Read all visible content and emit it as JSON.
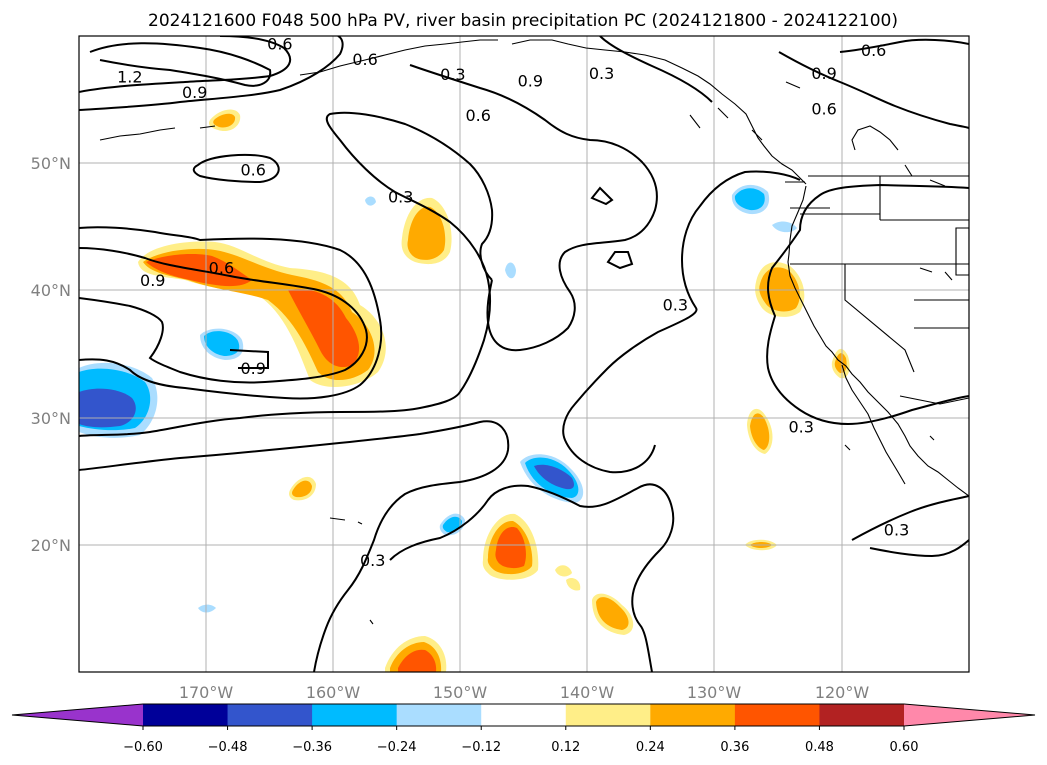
{
  "title": "2024121600 F048 500 hPa PV, river basin precipitation PC (2024121800 - 2024122100)",
  "map": {
    "lon_range": [
      -180,
      -110
    ],
    "lat_range": [
      10,
      60
    ],
    "lon_ticks": [
      {
        "value": -170,
        "label": "170°W"
      },
      {
        "value": -160,
        "label": "160°W"
      },
      {
        "value": -150,
        "label": "150°W"
      },
      {
        "value": -140,
        "label": "140°W"
      },
      {
        "value": -130,
        "label": "130°W"
      },
      {
        "value": -120,
        "label": "120°W"
      }
    ],
    "lat_ticks": [
      {
        "value": 20,
        "label": "20°N"
      },
      {
        "value": 30,
        "label": "30°N"
      },
      {
        "value": 40,
        "label": "40°N"
      },
      {
        "value": 50,
        "label": "50°N"
      }
    ],
    "grid": true
  },
  "contour_labels": [
    {
      "text": "1.2",
      "lon": -176,
      "lat": 56.8
    },
    {
      "text": "0.9",
      "lon": -170.9,
      "lat": 55.6
    },
    {
      "text": "0.6",
      "lon": -164.2,
      "lat": 59.4
    },
    {
      "text": "0.6",
      "lon": -157.5,
      "lat": 58.2
    },
    {
      "text": "0.3",
      "lon": -150.6,
      "lat": 57.0
    },
    {
      "text": "0.9",
      "lon": -144.5,
      "lat": 56.5
    },
    {
      "text": "0.6",
      "lon": -148.6,
      "lat": 53.8
    },
    {
      "text": "0.3",
      "lon": -138.9,
      "lat": 57.1
    },
    {
      "text": "0.9",
      "lon": -121.4,
      "lat": 57.1
    },
    {
      "text": "0.6",
      "lon": -117.5,
      "lat": 58.9
    },
    {
      "text": "0.6",
      "lon": -121.4,
      "lat": 54.3
    },
    {
      "text": "0.6",
      "lon": -166.3,
      "lat": 49.5
    },
    {
      "text": "0.3",
      "lon": -154.7,
      "lat": 47.4
    },
    {
      "text": "0.6",
      "lon": -168.8,
      "lat": 41.8
    },
    {
      "text": "0.9",
      "lon": -174.2,
      "lat": 40.8
    },
    {
      "text": "0.9",
      "lon": -166.3,
      "lat": 33.9
    },
    {
      "text": "0.3",
      "lon": -133.1,
      "lat": 38.9
    },
    {
      "text": "0.3",
      "lon": -123.2,
      "lat": 29.3
    },
    {
      "text": "0.3",
      "lon": -115.7,
      "lat": 21.2
    },
    {
      "text": "0.3",
      "lon": -156.9,
      "lat": 18.8
    }
  ],
  "legend": {
    "colors": [
      "#9933cc",
      "#000099",
      "#3355cc",
      "#00bbff",
      "#aaddff",
      "#ffffff",
      "#ffee88",
      "#ffaa00",
      "#ff5500",
      "#b22222",
      "#ff88aa"
    ],
    "tick_labels": [
      "−0.60",
      "−0.48",
      "−0.36",
      "−0.24",
      "−0.12",
      "0.12",
      "0.24",
      "0.36",
      "0.48",
      "0.60"
    ]
  }
}
